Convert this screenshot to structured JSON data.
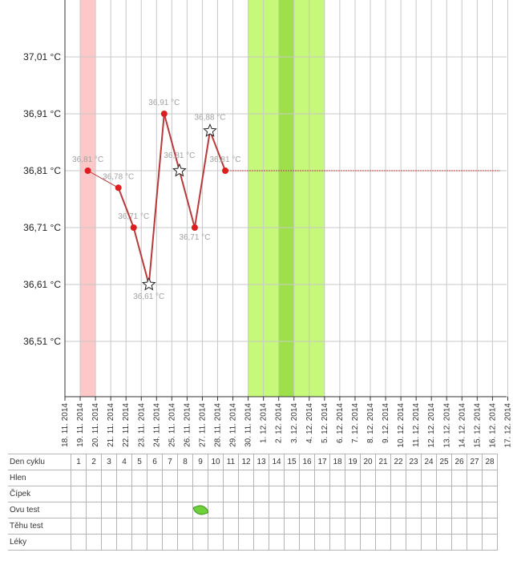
{
  "chart_data": {
    "type": "line",
    "x": [
      "18. 11. 2014",
      "19. 11. 2014",
      "20. 11. 2014",
      "21. 11. 2014",
      "22. 11. 2014",
      "23. 11. 2014",
      "24. 11. 2014",
      "25. 11. 2014",
      "26. 11. 2014",
      "27. 11. 2014",
      "28. 11. 2014",
      "29. 11. 2014",
      "30. 11. 2014",
      "1. 12. 2014",
      "2. 12. 2014",
      "3. 12. 2014",
      "4. 12. 2014",
      "5. 12. 2014",
      "6. 12. 2014",
      "7. 12. 2014",
      "8. 12. 2014",
      "9. 12. 2014",
      "10. 12. 2014",
      "11. 12. 2014",
      "12. 12. 2014",
      "13. 12. 2014",
      "14. 12. 2014",
      "15. 12. 2014",
      "16. 12. 2014",
      "17. 12. 2014"
    ],
    "y_ticks": [
      "37,01 °C",
      "36,91 °C",
      "36,81 °C",
      "36,71 °C",
      "36,61 °C",
      "36,51 °C"
    ],
    "y_tick_values": [
      37.01,
      36.91,
      36.81,
      36.71,
      36.61,
      36.51
    ],
    "ylim": [
      36.41,
      37.11
    ],
    "grid": true,
    "points": [
      {
        "x": "19. 11. 2014",
        "y": 36.81,
        "label": "36,81 °C",
        "marker": "dot"
      },
      {
        "x": "21. 11. 2014",
        "y": 36.78,
        "label": "36,78 °C",
        "marker": "dot"
      },
      {
        "x": "22. 11. 2014",
        "y": 36.71,
        "label": "36,71 °C",
        "marker": "dot"
      },
      {
        "x": "23. 11. 2014",
        "y": 36.61,
        "label": "36,61 °C",
        "marker": "star"
      },
      {
        "x": "24. 11. 2014",
        "y": 36.91,
        "label": "36,91 °C",
        "marker": "dot"
      },
      {
        "x": "25. 11. 2014",
        "y": 36.81,
        "label": "36,81 °C",
        "marker": "star"
      },
      {
        "x": "26. 11. 2014",
        "y": 36.71,
        "label": "36,71 °C",
        "marker": "dot"
      },
      {
        "x": "27. 11. 2014",
        "y": 36.88,
        "label": "36,88 °C",
        "marker": "star"
      },
      {
        "x": "28. 11. 2014",
        "y": 36.81,
        "label": "36,81 °C",
        "marker": "dot"
      }
    ],
    "baseline": {
      "y": 36.81,
      "from": "28. 11. 2014",
      "to": "16. 12. 2014"
    },
    "bands": [
      {
        "from": "19. 11. 2014",
        "to": "19. 11. 2014",
        "color": "#ffc8c8",
        "kind": "period"
      },
      {
        "from": "30. 11. 2014",
        "to": "4. 12. 2014",
        "color": "#c6f97a",
        "kind": "fertile"
      },
      {
        "from": "2. 12. 2014",
        "to": "2. 12. 2014",
        "color": "#9ee04a",
        "kind": "ovulation"
      }
    ],
    "line_color": "#b83a3a",
    "marker_color": "#dd1e1e"
  },
  "table": {
    "rows": [
      {
        "label": "Den cyklu"
      },
      {
        "label": "Hlen"
      },
      {
        "label": "Čípek"
      },
      {
        "label": "Ovu test"
      },
      {
        "label": "Těhu test"
      },
      {
        "label": "Léky"
      }
    ],
    "day_numbers": [
      "1",
      "2",
      "3",
      "4",
      "5",
      "6",
      "7",
      "8",
      "9",
      "10",
      "11",
      "12",
      "13",
      "14",
      "15",
      "16",
      "17",
      "18",
      "19",
      "20",
      "21",
      "22",
      "23",
      "24",
      "25",
      "26",
      "27",
      "28"
    ],
    "ovu_test_day": "9",
    "icons": {
      "ovu_positive": "leaf-icon"
    }
  }
}
